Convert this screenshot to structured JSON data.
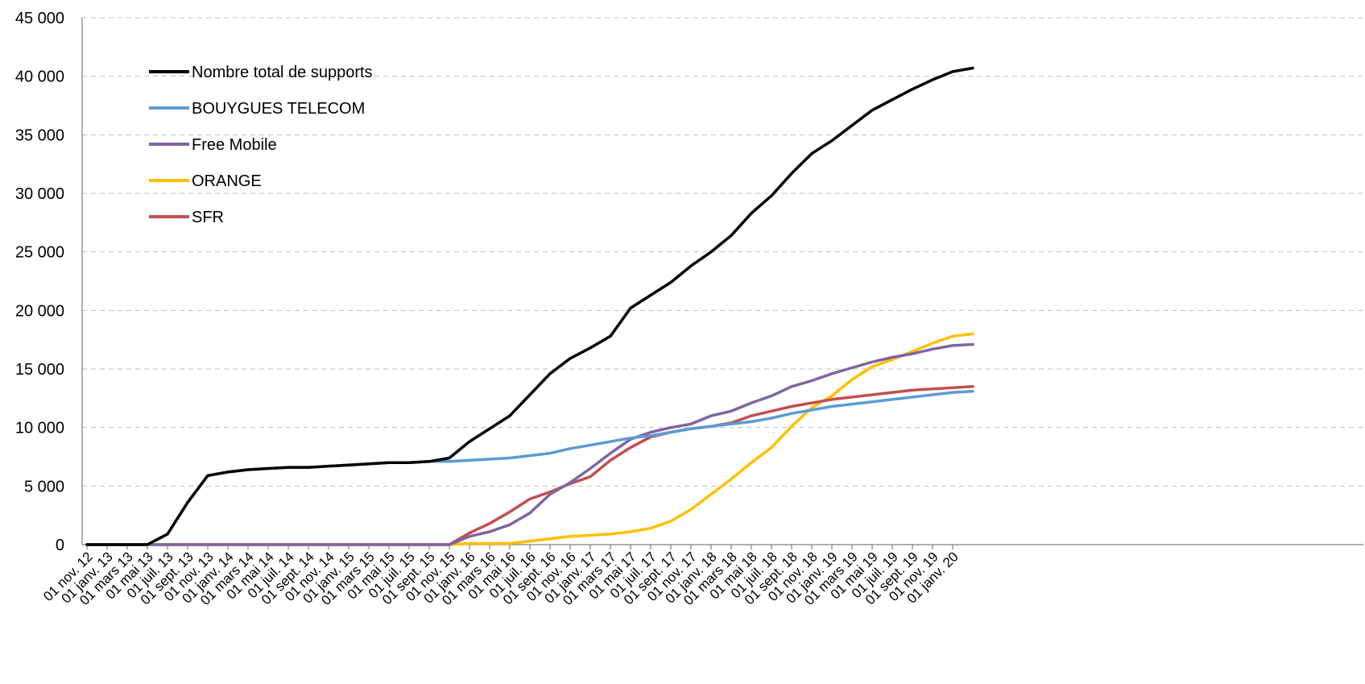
{
  "chart_data": {
    "type": "line",
    "title": "",
    "xlabel": "",
    "ylabel": "",
    "ylim": [
      0,
      45000
    ],
    "yticks": [
      0,
      5000,
      10000,
      15000,
      20000,
      25000,
      30000,
      35000,
      40000,
      45000
    ],
    "ytick_labels": [
      "0",
      "5 000",
      "10 000",
      "15 000",
      "20 000",
      "25 000",
      "30 000",
      "35 000",
      "40 000",
      "45 000"
    ],
    "grid": true,
    "legend_position": "top-left",
    "x": [
      "2012-11",
      "2013-01",
      "2013-03",
      "2013-05",
      "2013-07",
      "2013-09",
      "2013-11",
      "2014-01",
      "2014-03",
      "2014-05",
      "2014-07",
      "2014-09",
      "2014-11",
      "2015-01",
      "2015-03",
      "2015-05",
      "2015-07",
      "2015-09",
      "2015-11",
      "2016-01",
      "2016-03",
      "2016-05",
      "2016-07",
      "2016-09",
      "2016-11",
      "2017-01",
      "2017-03",
      "2017-05",
      "2017-07",
      "2017-09",
      "2017-11",
      "2018-01",
      "2018-03",
      "2018-05",
      "2018-07",
      "2018-09",
      "2018-11",
      "2019-01",
      "2019-03",
      "2019-05",
      "2019-07",
      "2019-09",
      "2019-11",
      "2020-01",
      "2020-02"
    ],
    "xtick_labels": [
      "01 nov. 12",
      "01 janv. 13",
      "01 mars 13",
      "01 mai 13",
      "01 juil. 13",
      "01 sept. 13",
      "01 nov. 13",
      "01 janv. 14",
      "01 mars 14",
      "01 mai 14",
      "01 juil. 14",
      "01 sept. 14",
      "01 nov. 14",
      "01 janv. 15",
      "01 mars 15",
      "01 mai 15",
      "01 juil. 15",
      "01 sept. 15",
      "01 nov. 15",
      "01 janv. 16",
      "01 mars 16",
      "01 mai 16",
      "01 juil. 16",
      "01 sept. 16",
      "01 nov. 16",
      "01 janv. 17",
      "01 mars 17",
      "01 mai 17",
      "01 juil. 17",
      "01 sept. 17",
      "01 nov. 17",
      "01 janv. 18",
      "01 mars 18",
      "01 mai 18",
      "01 juil. 18",
      "01 sept. 18",
      "01 nov. 18",
      "01 janv. 19",
      "01 mars 19",
      "01 mai 19",
      "01 juil. 19",
      "01 sept. 19",
      "01 nov. 19",
      "01 janv. 20"
    ],
    "series": [
      {
        "name": "Nombre total de supports",
        "color": "#000000",
        "values": [
          0,
          0,
          0,
          0,
          900,
          3600,
          5900,
          6200,
          6400,
          6500,
          6600,
          6600,
          6700,
          6800,
          6900,
          7000,
          7000,
          7100,
          7400,
          8800,
          9900,
          11000,
          12800,
          14600,
          15900,
          16800,
          17800,
          20200,
          21300,
          22400,
          23800,
          25000,
          26400,
          28300,
          29800,
          31700,
          33400,
          34500,
          35800,
          37100,
          38000,
          38900,
          39700,
          40400,
          40700
        ]
      },
      {
        "name": "BOUYGUES TELECOM",
        "color": "#5b9bd5",
        "values": [
          0,
          0,
          0,
          0,
          900,
          3600,
          5900,
          6200,
          6400,
          6500,
          6600,
          6600,
          6700,
          6800,
          6900,
          7000,
          7000,
          7100,
          7100,
          7200,
          7300,
          7400,
          7600,
          7800,
          8200,
          8500,
          8800,
          9100,
          9300,
          9600,
          9900,
          10100,
          10300,
          10500,
          10800,
          11200,
          11500,
          11800,
          12000,
          12200,
          12400,
          12600,
          12800,
          13000,
          13100
        ]
      },
      {
        "name": "Free Mobile",
        "color": "#8064a2",
        "values": [
          0,
          0,
          0,
          0,
          0,
          0,
          0,
          0,
          0,
          0,
          0,
          0,
          0,
          0,
          0,
          0,
          0,
          0,
          0,
          700,
          1100,
          1700,
          2700,
          4300,
          5300,
          6500,
          7800,
          9000,
          9600,
          10000,
          10300,
          11000,
          11400,
          12100,
          12700,
          13500,
          14000,
          14600,
          15100,
          15600,
          16000,
          16300,
          16700,
          17000,
          17100
        ]
      },
      {
        "name": "ORANGE",
        "color": "#ffc000",
        "values": [
          0,
          0,
          0,
          0,
          0,
          0,
          0,
          0,
          0,
          0,
          0,
          0,
          0,
          0,
          0,
          0,
          0,
          0,
          0,
          100,
          100,
          100,
          300,
          500,
          700,
          800,
          900,
          1100,
          1400,
          2000,
          3000,
          4300,
          5600,
          7000,
          8300,
          10100,
          11700,
          12700,
          14100,
          15200,
          15800,
          16500,
          17200,
          17800,
          18000
        ]
      },
      {
        "name": "SFR",
        "color": "#c0504d",
        "values": [
          0,
          0,
          0,
          0,
          0,
          0,
          0,
          0,
          0,
          0,
          0,
          0,
          0,
          0,
          0,
          0,
          0,
          0,
          0,
          1000,
          1800,
          2800,
          3900,
          4500,
          5200,
          5800,
          7200,
          8300,
          9200,
          9600,
          9900,
          10100,
          10400,
          11000,
          11400,
          11800,
          12100,
          12400,
          12600,
          12800,
          13000,
          13200,
          13300,
          13400,
          13500
        ]
      }
    ]
  }
}
